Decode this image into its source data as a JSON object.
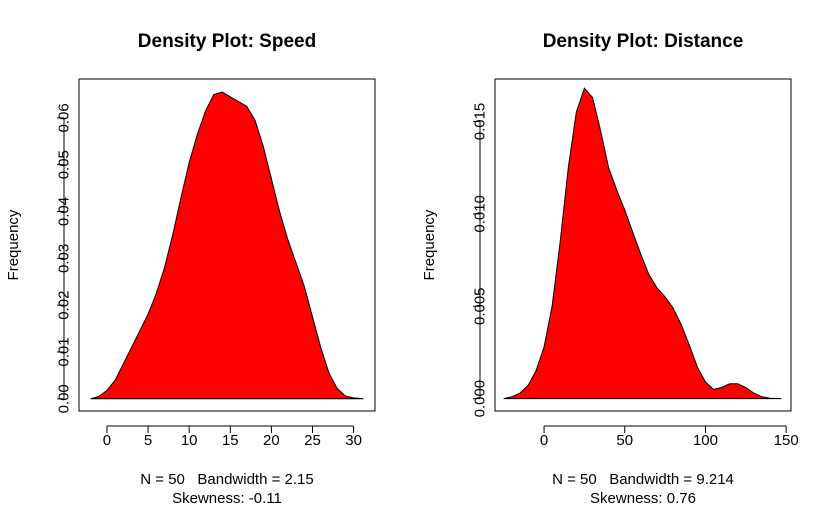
{
  "chart_data": [
    {
      "type": "area",
      "title": "Density Plot: Speed",
      "xlabel": "N = 50   Bandwidth = 2.15",
      "xlabel2": "Skewness: -0.11",
      "ylabel": "Frequency",
      "xlim": [
        -3.4,
        32.6
      ],
      "ylim": [
        -0.0026,
        0.0683
      ],
      "xticks": [
        0,
        5,
        10,
        15,
        20,
        25,
        30
      ],
      "yticks": [
        0.0,
        0.01,
        0.02,
        0.03,
        0.04,
        0.05,
        0.06
      ],
      "ytick_labels": [
        "0.00",
        "0.01",
        "0.02",
        "0.03",
        "0.04",
        "0.05",
        "0.06"
      ],
      "fill_color": "#ff0000",
      "line_color": "#000000",
      "series": [
        {
          "x": [
            -2.0,
            -1.0,
            0.0,
            1.0,
            2.0,
            3.0,
            4.0,
            5.0,
            6.0,
            7.0,
            8.0,
            9.0,
            10.0,
            11.0,
            12.0,
            13.0,
            14.0,
            15.0,
            16.0,
            17.0,
            18.0,
            19.0,
            20.0,
            21.0,
            22.0,
            23.0,
            24.0,
            25.0,
            26.0,
            27.0,
            28.0,
            29.0,
            30.0,
            31.2
          ],
          "y": [
            0.0,
            0.0005,
            0.0018,
            0.004,
            0.0075,
            0.011,
            0.0145,
            0.0181,
            0.0225,
            0.028,
            0.035,
            0.043,
            0.0505,
            0.0565,
            0.0615,
            0.065,
            0.0655,
            0.0645,
            0.0635,
            0.0625,
            0.0595,
            0.054,
            0.047,
            0.04,
            0.034,
            0.029,
            0.024,
            0.0175,
            0.011,
            0.0055,
            0.0022,
            0.0006,
            0.0002,
            0.0
          ]
        }
      ]
    },
    {
      "type": "area",
      "title": "Density Plot: Distance",
      "xlabel": "N = 50   Bandwidth = 9.214",
      "xlabel2": "Skewness: 0.76",
      "ylabel": "Frequency",
      "xlim": [
        -30.4,
        153.0
      ],
      "ylim": [
        -0.00067,
        0.0173
      ],
      "xticks": [
        0,
        50,
        100,
        150
      ],
      "yticks": [
        0.0,
        0.005,
        0.01,
        0.015
      ],
      "ytick_labels": [
        "0.000",
        "0.005",
        "0.010",
        "0.015"
      ],
      "fill_color": "#ff0000",
      "line_color": "#000000",
      "series": [
        {
          "x": [
            -25,
            -20,
            -15,
            -10,
            -5,
            0,
            5,
            10,
            15,
            20,
            25,
            30,
            35,
            40,
            45,
            50,
            55,
            60,
            65,
            70,
            75,
            80,
            85,
            90,
            95,
            100,
            105,
            110,
            115,
            120,
            125,
            130,
            135,
            140,
            147
          ],
          "y": [
            0.0,
            0.0001,
            0.0003,
            0.0007,
            0.0015,
            0.0028,
            0.005,
            0.0085,
            0.0125,
            0.0155,
            0.0168,
            0.0163,
            0.0145,
            0.0125,
            0.0113,
            0.0102,
            0.009,
            0.0078,
            0.0067,
            0.006,
            0.0055,
            0.0049,
            0.004,
            0.0029,
            0.0017,
            0.0009,
            0.0005,
            0.0006,
            0.0008,
            0.0008,
            0.0006,
            0.0003,
            0.0001,
            2e-05,
            0.0
          ]
        }
      ]
    }
  ]
}
